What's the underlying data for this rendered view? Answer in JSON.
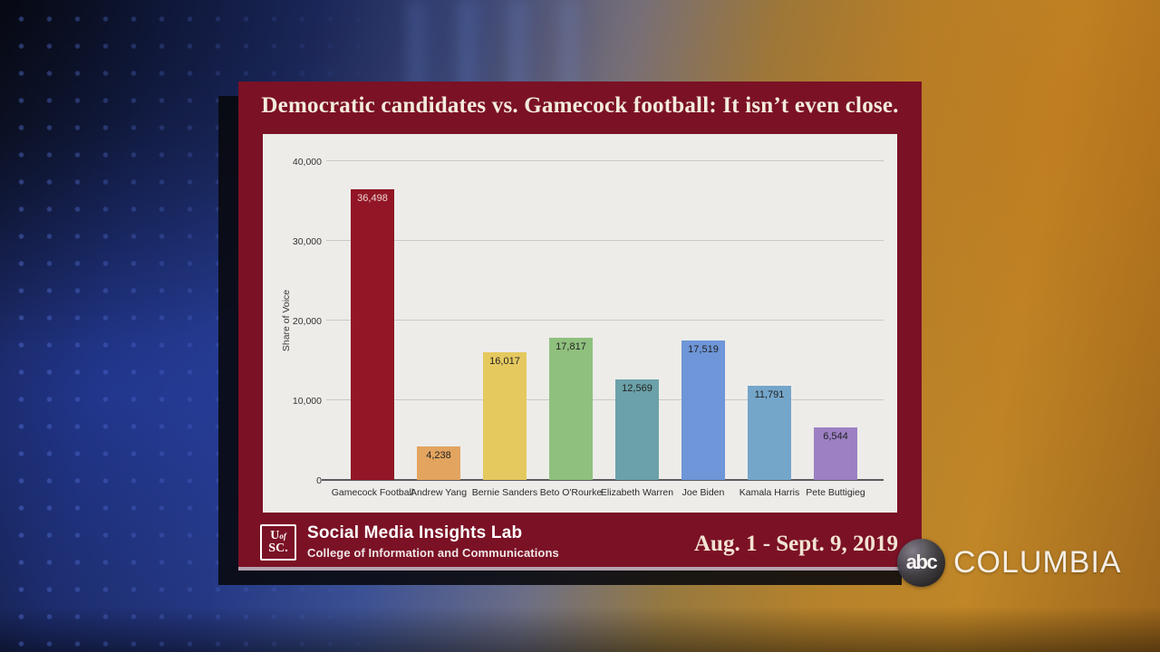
{
  "chart_data": {
    "type": "bar",
    "title": "Democratic candidates vs. Gamecock football: It isn’t even close.",
    "ylabel": "Share of Voice",
    "xlabel": "",
    "ylim": [
      0,
      40000
    ],
    "yticks": [
      0,
      10000,
      20000,
      30000,
      40000
    ],
    "ytick_labels": [
      "0",
      "10,000",
      "20,000",
      "30,000",
      "40,000"
    ],
    "grid": true,
    "legend_position": "none",
    "categories": [
      "Gamecock Football",
      "Andrew Yang",
      "Bernie Sanders",
      "Beto O'Rourke",
      "Elizabeth Warren",
      "Joe Biden",
      "Kamala Harris",
      "Pete Buttigieg"
    ],
    "values": [
      36498,
      4238,
      16017,
      17817,
      12569,
      17519,
      11791,
      6544
    ],
    "value_labels": [
      "36,498",
      "4,238",
      "16,017",
      "17,817",
      "12,569",
      "17,519",
      "11,791",
      "6,544"
    ],
    "bar_colors": [
      "#921625",
      "#e3a45f",
      "#e5c95f",
      "#8fc07d",
      "#6ba1a9",
      "#6e96d8",
      "#74a6ca",
      "#9c80c3"
    ],
    "value_label_colors": [
      "#eed4d4",
      "#222222",
      "#222222",
      "#222222",
      "#222222",
      "#222222",
      "#222222",
      "#222222"
    ]
  },
  "footer": {
    "logo": {
      "u": "U",
      "of": "of",
      "sc": "SC."
    },
    "lab_name": "Social Media Insights Lab",
    "college": "College of Information and Communications",
    "date_range": "Aug. 1 - Sept. 9, 2019"
  },
  "watermark": {
    "abc": "abc",
    "station": "COLUMBIA"
  },
  "colors": {
    "slide_bg": "#7b1125",
    "panel_bg": "#edece9",
    "title_text": "#f3ecdd",
    "gridline": "#c9c9c4",
    "baseline": "#5a5b5f"
  }
}
